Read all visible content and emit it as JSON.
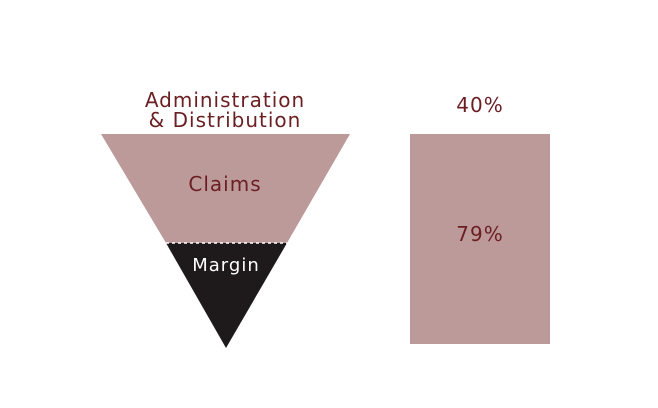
{
  "diagram": {
    "funnel": {
      "top_label_line1": "Administration",
      "top_label_line2": "& Distribution",
      "upper_section_label": "Claims",
      "lower_section_label": "Margin"
    },
    "bar": {
      "top_value_label": "40%",
      "inner_value_label": "79%"
    }
  },
  "colors": {
    "rose": "#bd9a9a",
    "dark": "#1e1a1c",
    "label_text": "#6b1f22",
    "inverse_text": "#ffffff"
  }
}
